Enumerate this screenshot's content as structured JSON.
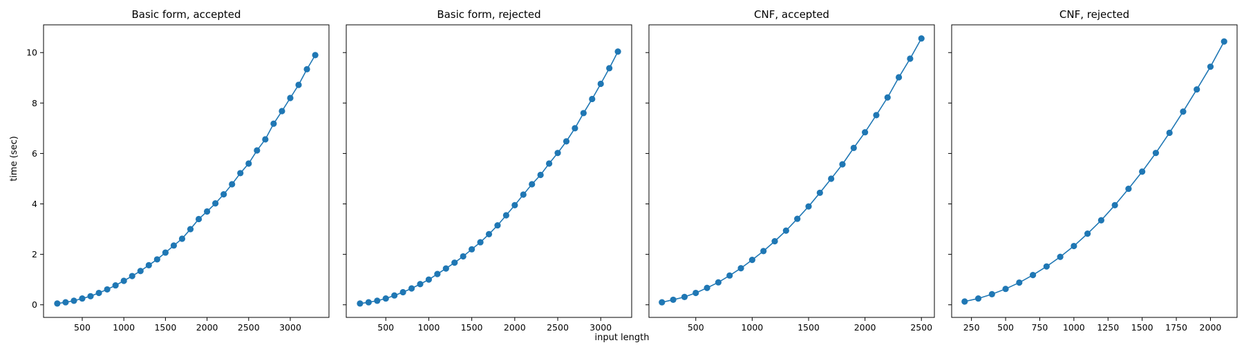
{
  "figure": {
    "xlabel": "input length",
    "ylabel": "time (sec)",
    "color": "#1f77b4"
  },
  "chart_data": [
    {
      "type": "line",
      "title": "Basic form, accepted",
      "xlabel": "",
      "ylabel": "time (sec)",
      "x": [
        200,
        300,
        400,
        500,
        600,
        700,
        800,
        900,
        1000,
        1100,
        1200,
        1300,
        1400,
        1500,
        1600,
        1700,
        1800,
        1900,
        2000,
        2100,
        2200,
        2300,
        2400,
        2500,
        2600,
        2700,
        2800,
        2900,
        3000,
        3100,
        3200,
        3300
      ],
      "y": [
        0.05,
        0.1,
        0.16,
        0.25,
        0.34,
        0.47,
        0.61,
        0.77,
        0.95,
        1.14,
        1.34,
        1.57,
        1.8,
        2.07,
        2.35,
        2.62,
        3.0,
        3.4,
        3.7,
        4.02,
        4.38,
        4.78,
        5.22,
        5.6,
        6.12,
        6.56,
        7.18,
        7.68,
        8.2,
        8.72,
        9.34,
        9.9
      ],
      "xticks": [
        500,
        1000,
        1500,
        2000,
        2500,
        3000
      ],
      "xlim": [
        35,
        3465
      ],
      "yticks": [
        0,
        2,
        4,
        6,
        8,
        10
      ],
      "ylim": [
        -0.5,
        11.1
      ]
    },
    {
      "type": "line",
      "title": "Basic form, rejected",
      "xlabel": "",
      "ylabel": "",
      "x": [
        200,
        300,
        400,
        500,
        600,
        700,
        800,
        900,
        1000,
        1100,
        1200,
        1300,
        1400,
        1500,
        1600,
        1700,
        1800,
        1900,
        2000,
        2100,
        2200,
        2300,
        2400,
        2500,
        2600,
        2700,
        2800,
        2900,
        3000,
        3100,
        3200
      ],
      "y": [
        0.05,
        0.1,
        0.16,
        0.25,
        0.37,
        0.5,
        0.65,
        0.82,
        1.0,
        1.22,
        1.44,
        1.67,
        1.92,
        2.2,
        2.48,
        2.8,
        3.15,
        3.55,
        3.95,
        4.37,
        4.78,
        5.15,
        5.6,
        6.02,
        6.48,
        7.0,
        7.6,
        8.16,
        8.76,
        9.38,
        10.04
      ],
      "xticks": [
        500,
        1000,
        1500,
        2000,
        2500,
        3000
      ],
      "xlim": [
        40,
        3360
      ],
      "yticks": [
        0,
        2,
        4,
        6,
        8,
        10
      ],
      "ylim": [
        -0.5,
        11.1
      ]
    },
    {
      "type": "line",
      "title": "CNF, accepted",
      "xlabel": "",
      "ylabel": "",
      "x": [
        200,
        300,
        400,
        500,
        600,
        700,
        800,
        900,
        1000,
        1100,
        1200,
        1300,
        1400,
        1500,
        1600,
        1700,
        1800,
        1900,
        2000,
        2100,
        2200,
        2300,
        2400,
        2500
      ],
      "y": [
        0.1,
        0.2,
        0.31,
        0.47,
        0.67,
        0.89,
        1.16,
        1.45,
        1.78,
        2.13,
        2.52,
        2.94,
        3.41,
        3.9,
        4.44,
        5.0,
        5.57,
        6.22,
        6.84,
        7.52,
        8.22,
        9.02,
        9.76,
        10.56
      ],
      "xticks": [
        500,
        1000,
        1500,
        2000,
        2500
      ],
      "xlim": [
        85,
        2615
      ],
      "yticks": [
        0,
        2,
        4,
        6,
        8,
        10
      ],
      "ylim": [
        -0.5,
        11.1
      ]
    },
    {
      "type": "line",
      "title": "CNF, rejected",
      "xlabel": "",
      "ylabel": "",
      "x": [
        200,
        300,
        400,
        500,
        600,
        700,
        800,
        900,
        1000,
        1100,
        1200,
        1300,
        1400,
        1500,
        1600,
        1700,
        1800,
        1900,
        2000,
        2100
      ],
      "y": [
        0.13,
        0.25,
        0.42,
        0.63,
        0.88,
        1.18,
        1.52,
        1.9,
        2.33,
        2.82,
        3.35,
        3.95,
        4.6,
        5.28,
        6.02,
        6.82,
        7.66,
        8.54,
        9.44,
        10.44
      ],
      "xticks": [
        250,
        500,
        750,
        1000,
        1250,
        1500,
        1750,
        2000
      ],
      "xlim": [
        105,
        2195
      ],
      "yticks": [
        0,
        2,
        4,
        6,
        8,
        10
      ],
      "ylim": [
        -0.5,
        11.1
      ]
    }
  ]
}
